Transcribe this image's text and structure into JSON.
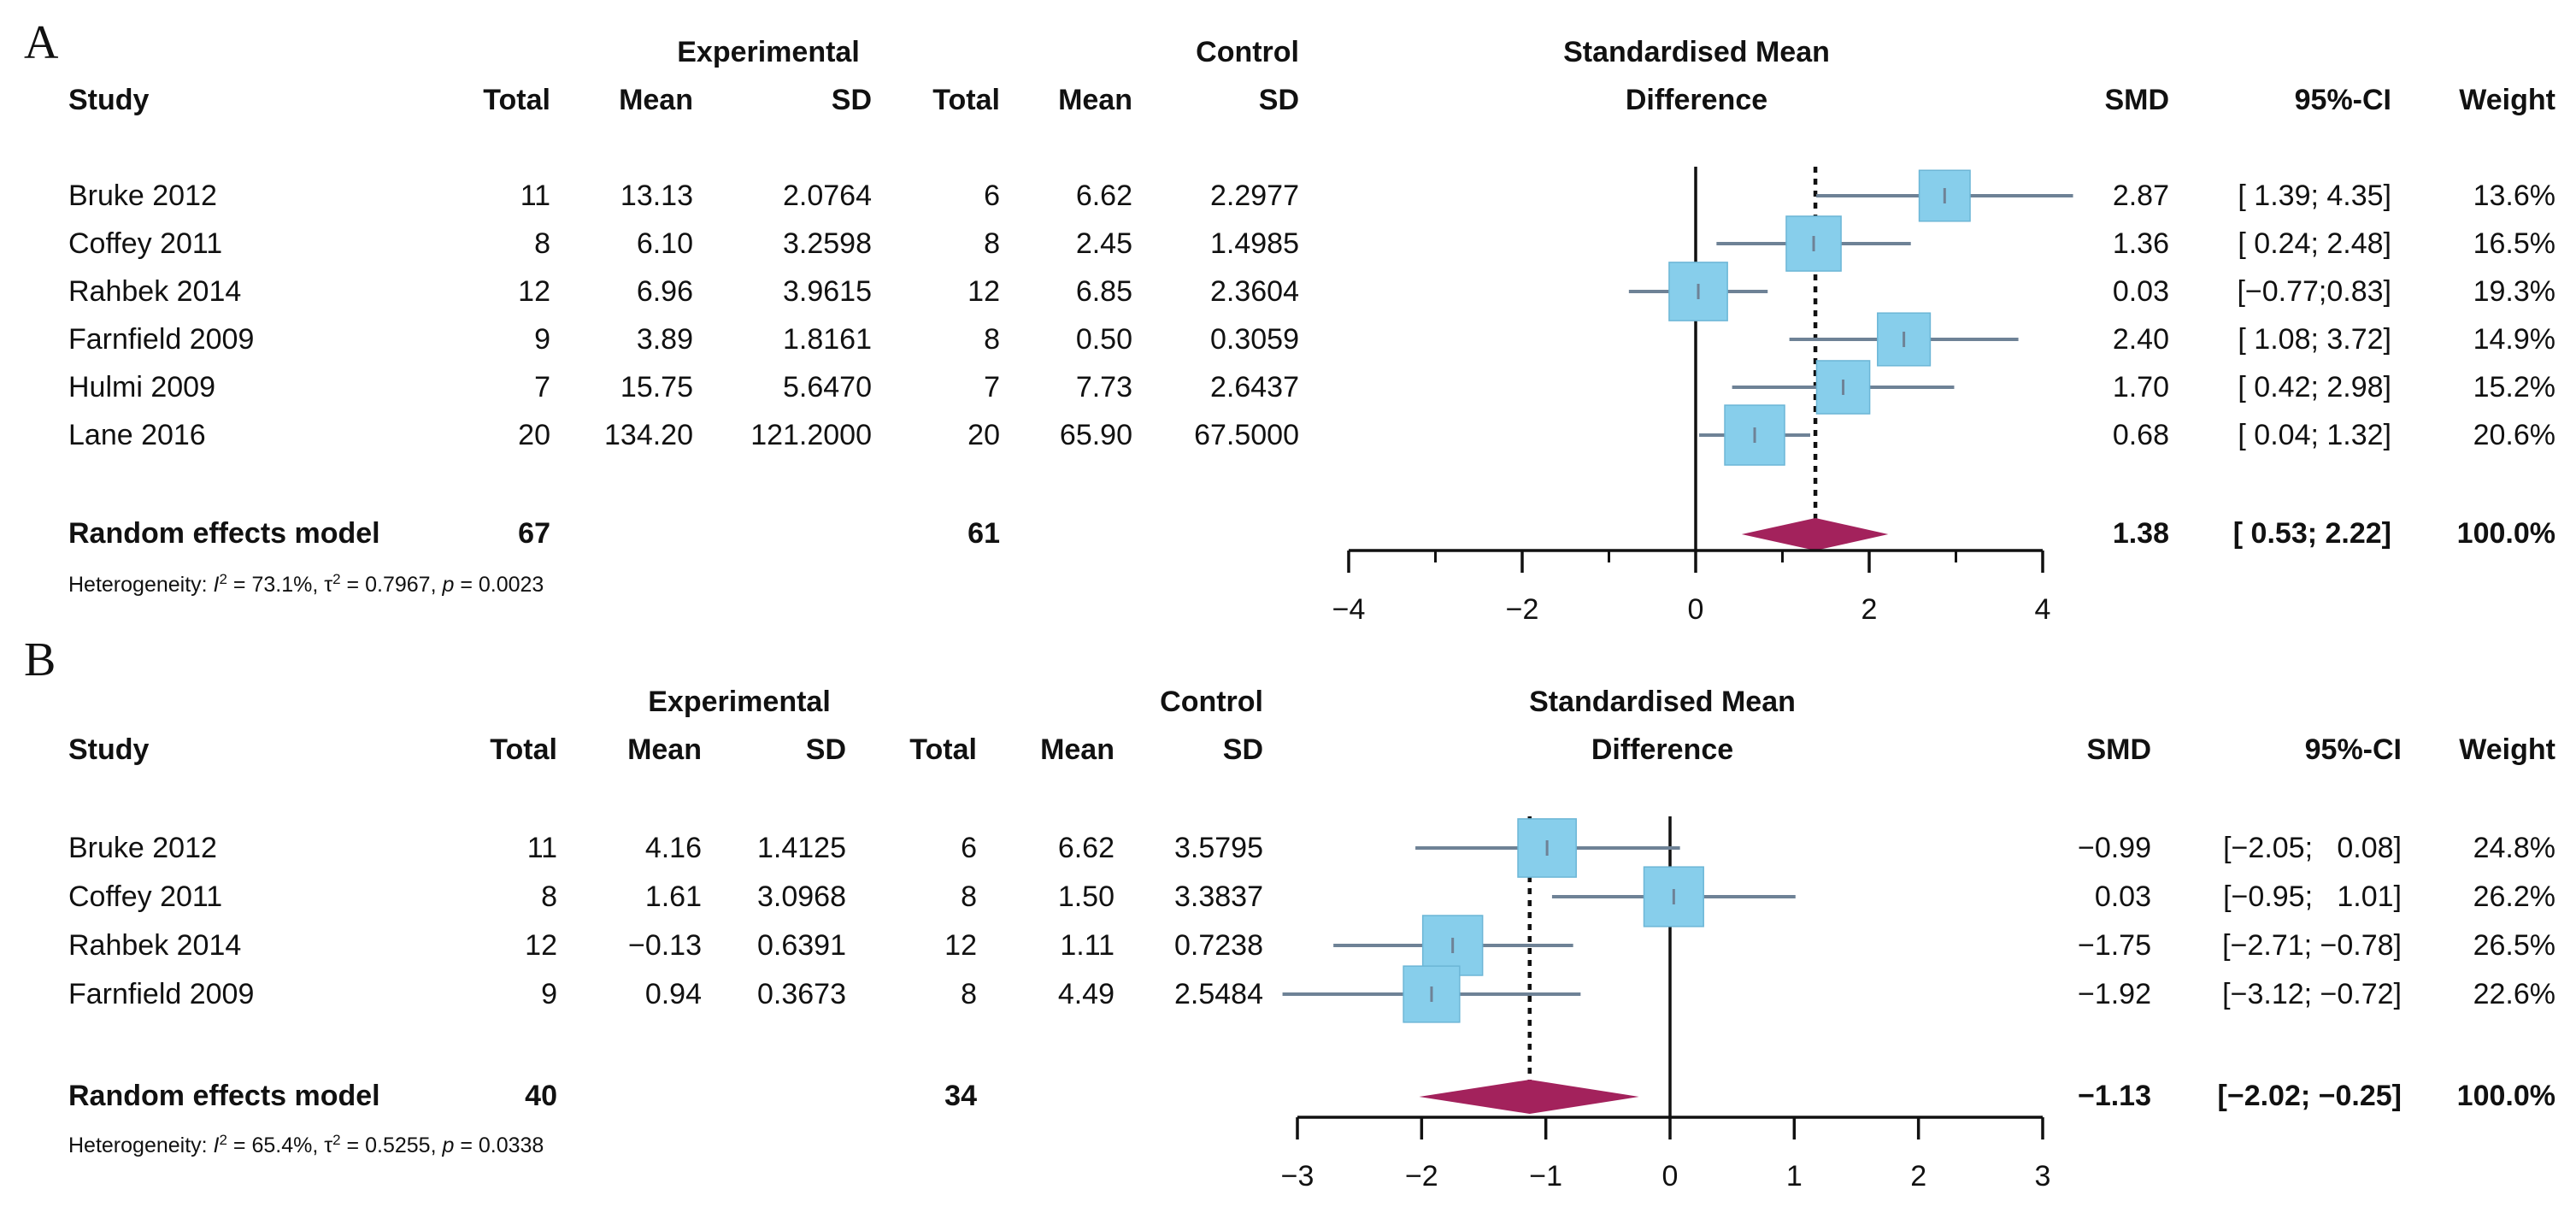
{
  "figure": {
    "panel_labels": [
      "A",
      "B"
    ]
  },
  "colors": {
    "box_fill": "#87CEEB",
    "box_stroke": "#6CB6D6",
    "ci_line": "#6E8296",
    "diamond": "#A3225C",
    "text": "#111111",
    "axis": "#111111"
  },
  "chart_data": [
    {
      "type": "forest",
      "panel": "A",
      "headers": {
        "experimental": "Experimental",
        "control": "Control",
        "effect_line1": "Standardised Mean",
        "effect_line2": "Difference",
        "study": "Study",
        "total": "Total",
        "mean": "Mean",
        "sd": "SD",
        "smd": "SMD",
        "ci": "95%-CI",
        "weight": "Weight"
      },
      "studies": [
        {
          "study": "Bruke 2012",
          "e_total": "11",
          "e_mean": "13.13",
          "e_sd": "2.0764",
          "c_total": "6",
          "c_mean": "6.62",
          "c_sd": "2.2977",
          "smd_text": "2.87",
          "ci_text": "[ 1.39; 4.35]",
          "weight_text": "13.6%",
          "smd": 2.87,
          "lo": 1.39,
          "hi": 4.35,
          "weight": 13.6
        },
        {
          "study": "Coffey 2011",
          "e_total": "8",
          "e_mean": "6.10",
          "e_sd": "3.2598",
          "c_total": "8",
          "c_mean": "2.45",
          "c_sd": "1.4985",
          "smd_text": "1.36",
          "ci_text": "[ 0.24; 2.48]",
          "weight_text": "16.5%",
          "smd": 1.36,
          "lo": 0.24,
          "hi": 2.48,
          "weight": 16.5
        },
        {
          "study": "Rahbek 2014",
          "e_total": "12",
          "e_mean": "6.96",
          "e_sd": "3.9615",
          "c_total": "12",
          "c_mean": "6.85",
          "c_sd": "2.3604",
          "smd_text": "0.03",
          "ci_text": "[−0.77;0.83]",
          "weight_text": "19.3%",
          "smd": 0.03,
          "lo": -0.77,
          "hi": 0.83,
          "weight": 19.3
        },
        {
          "study": "Farnfield 2009",
          "e_total": "9",
          "e_mean": "3.89",
          "e_sd": "1.8161",
          "c_total": "8",
          "c_mean": "0.50",
          "c_sd": "0.3059",
          "smd_text": "2.40",
          "ci_text": "[ 1.08; 3.72]",
          "weight_text": "14.9%",
          "smd": 2.4,
          "lo": 1.08,
          "hi": 3.72,
          "weight": 14.9
        },
        {
          "study": "Hulmi 2009",
          "e_total": "7",
          "e_mean": "15.75",
          "e_sd": "5.6470",
          "c_total": "7",
          "c_mean": "7.73",
          "c_sd": "2.6437",
          "smd_text": "1.70",
          "ci_text": "[ 0.42; 2.98]",
          "weight_text": "15.2%",
          "smd": 1.7,
          "lo": 0.42,
          "hi": 2.98,
          "weight": 15.2
        },
        {
          "study": "Lane 2016",
          "e_total": "20",
          "e_mean": "134.20",
          "e_sd": "121.2000",
          "c_total": "20",
          "c_mean": "65.90",
          "c_sd": "67.5000",
          "smd_text": "0.68",
          "ci_text": "[ 0.04; 1.32]",
          "weight_text": "20.6%",
          "smd": 0.68,
          "lo": 0.04,
          "hi": 1.32,
          "weight": 20.6
        }
      ],
      "summary": {
        "label": "Random effects model",
        "e_total": "67",
        "c_total": "61",
        "smd_text": "1.38",
        "ci_text": "[ 0.53; 2.22]",
        "weight_text": "100.0%",
        "smd": 1.38,
        "lo": 0.53,
        "hi": 2.22
      },
      "heterogeneity": {
        "prefix": "Heterogeneity: ",
        "i_symbol": "I",
        "i_exp": "2",
        "i_value": " = 73.1%, ",
        "tau_symbol": "τ",
        "tau_exp": "2",
        "tau_value": " = 0.7967, ",
        "p_symbol": "p",
        "p_value": " = 0.0023"
      },
      "xaxis": {
        "min": -4,
        "max": 4,
        "ticks": [
          -4,
          -2,
          0,
          2,
          4
        ],
        "tick_labels": [
          "−4",
          "−2",
          "0",
          "2",
          "4"
        ],
        "minor_ticks": [
          -3,
          -1,
          1,
          3
        ]
      }
    },
    {
      "type": "forest",
      "panel": "B",
      "headers": {
        "experimental": "Experimental",
        "control": "Control",
        "effect_line1": "Standardised Mean",
        "effect_line2": "Difference",
        "study": "Study",
        "total": "Total",
        "mean": "Mean",
        "sd": "SD",
        "smd": "SMD",
        "ci": "95%-CI",
        "weight": "Weight"
      },
      "studies": [
        {
          "study": "Bruke 2012",
          "e_total": "11",
          "e_mean": "4.16",
          "e_sd": "1.4125",
          "c_total": "6",
          "c_mean": "6.62",
          "c_sd": "3.5795",
          "smd_text": "−0.99",
          "ci_text": "[−2.05;   0.08]",
          "weight_text": "24.8%",
          "smd": -0.99,
          "lo": -2.05,
          "hi": 0.08,
          "weight": 24.8
        },
        {
          "study": "Coffey 2011",
          "e_total": "8",
          "e_mean": "1.61",
          "e_sd": "3.0968",
          "c_total": "8",
          "c_mean": "1.50",
          "c_sd": "3.3837",
          "smd_text": "0.03",
          "ci_text": "[−0.95;   1.01]",
          "weight_text": "26.2%",
          "smd": 0.03,
          "lo": -0.95,
          "hi": 1.01,
          "weight": 26.2
        },
        {
          "study": "Rahbek 2014",
          "e_total": "12",
          "e_mean": "−0.13",
          "e_sd": "0.6391",
          "c_total": "12",
          "c_mean": "1.11",
          "c_sd": "0.7238",
          "smd_text": "−1.75",
          "ci_text": "[−2.71; −0.78]",
          "weight_text": "26.5%",
          "smd": -1.75,
          "lo": -2.71,
          "hi": -0.78,
          "weight": 26.5
        },
        {
          "study": "Farnfield 2009",
          "e_total": "9",
          "e_mean": "0.94",
          "e_sd": "0.3673",
          "c_total": "8",
          "c_mean": "4.49",
          "c_sd": "2.5484",
          "smd_text": "−1.92",
          "ci_text": "[−3.12; −0.72]",
          "weight_text": "22.6%",
          "smd": -1.92,
          "lo": -3.12,
          "hi": -0.72,
          "weight": 22.6
        }
      ],
      "summary": {
        "label": "Random effects model",
        "e_total": "40",
        "c_total": "34",
        "smd_text": "−1.13",
        "ci_text": "[−2.02; −0.25]",
        "weight_text": "100.0%",
        "smd": -1.13,
        "lo": -2.02,
        "hi": -0.25
      },
      "heterogeneity": {
        "prefix": "Heterogeneity: ",
        "i_symbol": "I",
        "i_exp": "2",
        "i_value": " = 65.4%, ",
        "tau_symbol": "τ",
        "tau_exp": "2",
        "tau_value": " = 0.5255, ",
        "p_symbol": "p",
        "p_value": " = 0.0338"
      },
      "xaxis": {
        "min": -3,
        "max": 3,
        "ticks": [
          -3,
          -2,
          -1,
          0,
          1,
          2,
          3
        ],
        "tick_labels": [
          "−3",
          "−2",
          "−1",
          "0",
          "1",
          "2",
          "3"
        ],
        "minor_ticks": []
      }
    }
  ]
}
